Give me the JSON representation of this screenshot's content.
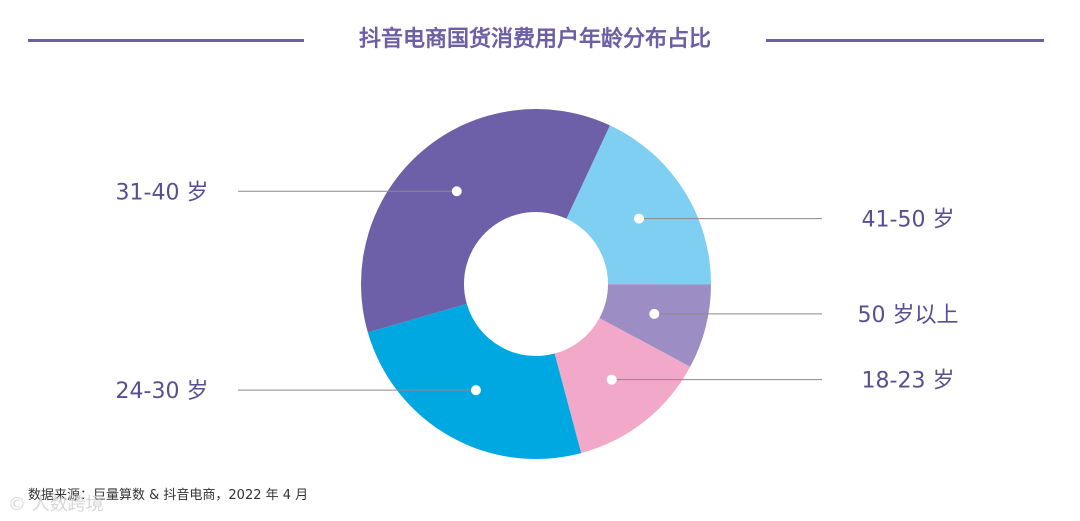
{
  "title": "抖音电商国货消费用户年龄分布占比",
  "source": "数据来源：巨量算数 & 抖音电商，2022 年 4 月",
  "watermark": "© 人数跨境",
  "colors": {
    "title": "#6e5fa5",
    "label": "#5a4d93",
    "leader_line": "#8a8a8a"
  },
  "chart_data": {
    "type": "pie",
    "donut": true,
    "title": "抖音电商国货消费用户年龄分布占比",
    "start_angle_deg": -65,
    "slices": [
      {
        "label": "41-50 岁",
        "value": 18.1,
        "color": "#7fcff3"
      },
      {
        "label": "50 岁以上",
        "value": 7.8,
        "color": "#9c8dc4"
      },
      {
        "label": "18-23 岁",
        "value": 13.0,
        "color": "#f2a8c9"
      },
      {
        "label": "24-30 岁",
        "value": 24.7,
        "color": "#00a8e1"
      },
      {
        "label": "31-40 岁",
        "value": 36.4,
        "color": "#6e60a8"
      }
    ],
    "label_sides": [
      "right",
      "right",
      "right",
      "left",
      "left"
    ]
  }
}
